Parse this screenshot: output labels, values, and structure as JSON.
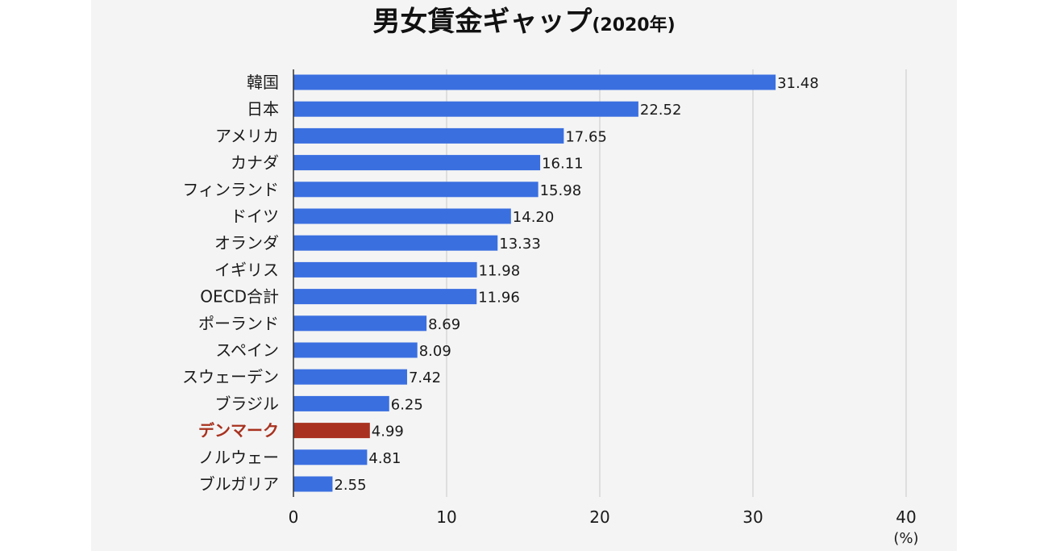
{
  "chart_data": {
    "type": "bar",
    "orientation": "horizontal",
    "title": "男女賃金ギャップ",
    "subtitle": "(2020年)",
    "categories": [
      "韓国",
      "日本",
      "アメリカ",
      "カナダ",
      "フィンランド",
      "ドイツ",
      "オランダ",
      "イギリス",
      "OECD合計",
      "ポーランド",
      "スペイン",
      "スウェーデン",
      "ブラジル",
      "デンマーク",
      "ノルウェー",
      "ブルガリア"
    ],
    "values": [
      31.48,
      22.52,
      17.65,
      16.11,
      15.98,
      14.2,
      13.33,
      11.98,
      11.96,
      8.69,
      8.09,
      7.42,
      6.25,
      4.99,
      4.81,
      2.55
    ],
    "value_labels": [
      "31.48",
      "22.52",
      "17.65",
      "16.11",
      "15.98",
      "14.20",
      "13.33",
      "11.98",
      "11.96",
      "8.69",
      "8.09",
      "7.42",
      "6.25",
      "4.99",
      "4.81",
      "2.55"
    ],
    "highlight": "デンマーク",
    "xlim": [
      0,
      40
    ],
    "xticks": [
      0,
      10,
      20,
      30,
      40
    ],
    "xlabel": "",
    "unit": "(%)",
    "ylabel": "",
    "grid": true,
    "colors": {
      "bar": "#3a6fe0",
      "highlight_bar": "#a8321f",
      "highlight_text": "#a8321f"
    }
  }
}
